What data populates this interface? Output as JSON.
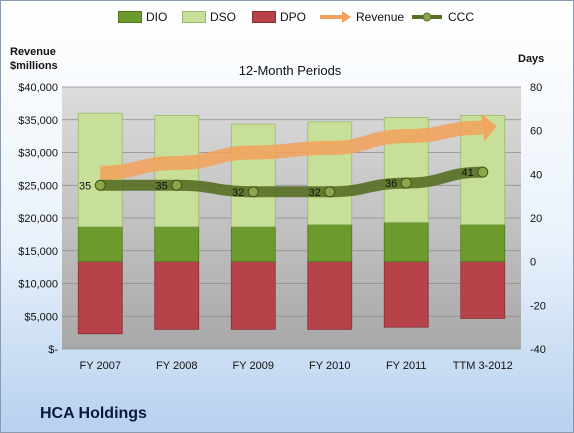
{
  "company": "HCA Holdings",
  "legend": [
    "DIO",
    "DSO",
    "DPO",
    "Revenue",
    "CCC"
  ],
  "left_axis_title": [
    "Revenue",
    "$millions"
  ],
  "right_axis_title": "Days",
  "chart_data": {
    "type": "bar",
    "title": "12-Month Periods",
    "categories": [
      "FY 2007",
      "FY 2008",
      "FY 2009",
      "FY 2010",
      "FY 2011",
      "TTM 3-2012"
    ],
    "y_left": {
      "label": "Revenue $millions",
      "range": [
        0,
        40000
      ],
      "ticks": [
        "$-",
        "$5,000",
        "$10,000",
        "$15,000",
        "$20,000",
        "$25,000",
        "$30,000",
        "$35,000",
        "$40,000"
      ]
    },
    "y_right": {
      "label": "Days",
      "range": [
        -40,
        80
      ],
      "ticks": [
        "-40",
        "-20",
        "0",
        "20",
        "40",
        "60",
        "80"
      ]
    },
    "stacked_days": {
      "DPO": [
        -33,
        -31,
        -31,
        -31,
        -30,
        -26
      ],
      "DIO": [
        16,
        16,
        16,
        17,
        18,
        17
      ],
      "DSO": [
        52,
        51,
        47,
        47,
        48,
        50
      ]
    },
    "series": [
      {
        "name": "CCC",
        "axis": "right",
        "values": [
          35,
          35,
          32,
          32,
          36,
          41
        ],
        "labels": [
          "35",
          "35",
          "32",
          "32",
          "36",
          "41"
        ]
      },
      {
        "name": "Revenue",
        "axis": "left",
        "values": [
          26900,
          28400,
          30000,
          30700,
          32500,
          33800
        ]
      }
    ],
    "colors": {
      "DIO": "#6d9a2c",
      "DSO": "#c7df98",
      "DPO": "#b8424a",
      "Revenue": "#f3a15a",
      "CCC": "#586e24"
    },
    "grid": true,
    "legend_position": "top"
  }
}
